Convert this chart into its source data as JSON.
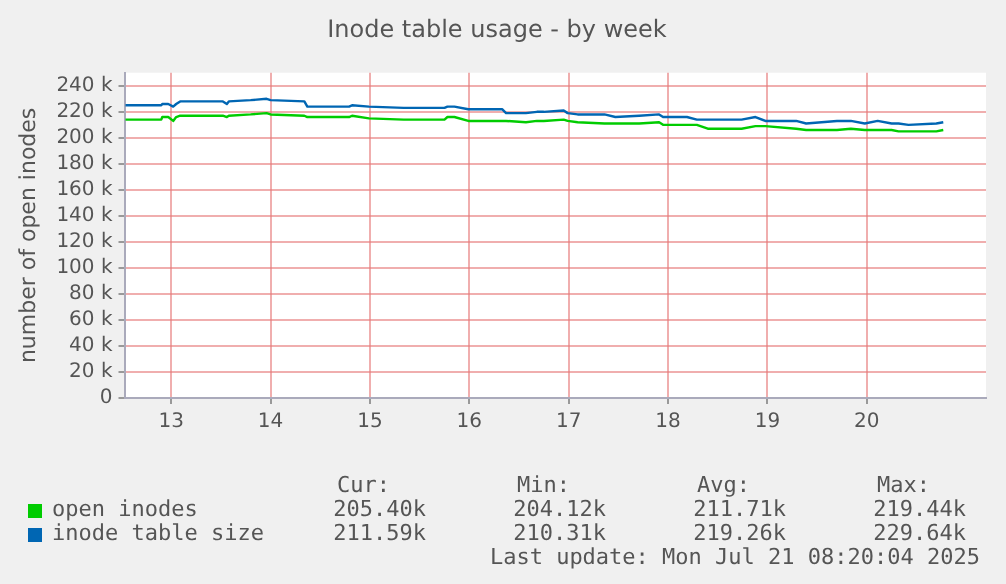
{
  "chart_data": {
    "type": "line",
    "title": "Inode table usage - by week",
    "ylabel": "number of open inodes",
    "xlim": [
      12.53,
      21.2
    ],
    "xticks": [
      13,
      14,
      15,
      16,
      17,
      18,
      19,
      20
    ],
    "ylim": [
      0,
      250000
    ],
    "yticks": [
      0,
      {
        "value": 20000,
        "label": "20 k"
      },
      {
        "value": 40000,
        "label": "40 k"
      },
      {
        "value": 60000,
        "label": "60 k"
      },
      {
        "value": 80000,
        "label": "80 k"
      },
      {
        "value": 100000,
        "label": "100 k"
      },
      {
        "value": 120000,
        "label": "120 k"
      },
      {
        "value": 140000,
        "label": "140 k"
      },
      {
        "value": 160000,
        "label": "160 k"
      },
      {
        "value": 180000,
        "label": "180 k"
      },
      {
        "value": 200000,
        "label": "200 k"
      },
      {
        "value": 220000,
        "label": "220 k"
      },
      {
        "value": 240000,
        "label": "240 k"
      }
    ],
    "x": [
      12.54,
      12.9,
      12.91,
      12.97,
      13.02,
      13.05,
      13.09,
      13.52,
      13.56,
      13.58,
      13.8,
      13.96,
      14.0,
      14.34,
      14.37,
      14.79,
      14.82,
      14.99,
      15.34,
      15.75,
      15.78,
      15.85,
      15.99,
      16.33,
      16.37,
      16.57,
      16.68,
      16.75,
      16.95,
      16.99,
      17.09,
      17.36,
      17.47,
      17.71,
      17.91,
      17.95,
      18.19,
      18.29,
      18.4,
      18.74,
      18.88,
      18.98,
      19.29,
      19.39,
      19.7,
      19.84,
      19.98,
      20.11,
      20.25,
      20.32,
      20.42,
      20.7,
      20.77
    ],
    "series": [
      {
        "name": "open inodes",
        "color": "#00cc00",
        "values": [
          214000,
          214000,
          216000,
          216000,
          213000,
          216000,
          217000,
          217000,
          216000,
          217000,
          218000,
          219000,
          218000,
          217000,
          216000,
          216000,
          217000,
          215000,
          214000,
          214000,
          216000,
          216000,
          213000,
          213000,
          213000,
          212000,
          213000,
          213000,
          214000,
          213000,
          212000,
          211000,
          211000,
          211000,
          212000,
          210000,
          210000,
          210000,
          207000,
          207000,
          209000,
          209000,
          207000,
          206000,
          206000,
          207000,
          206000,
          206000,
          206000,
          205000,
          205000,
          205000,
          206000
        ]
      },
      {
        "name": "inode table size",
        "color": "#0066b3",
        "values": [
          225000,
          225000,
          226000,
          226000,
          224000,
          226000,
          228000,
          228000,
          226000,
          228000,
          229000,
          230000,
          229000,
          228000,
          224000,
          224000,
          225000,
          224000,
          223000,
          223000,
          224000,
          224000,
          222000,
          222000,
          219000,
          219000,
          220000,
          220000,
          221000,
          219000,
          218000,
          218000,
          216000,
          217000,
          218000,
          216000,
          216000,
          214000,
          214000,
          214000,
          216000,
          213000,
          213000,
          211000,
          213000,
          213000,
          211000,
          213000,
          211000,
          211000,
          210000,
          211000,
          212000
        ]
      }
    ],
    "grid": true,
    "legend": "bottom",
    "marker": "none",
    "line_style": "solid",
    "annotations": [
      "Cur:",
      "Min:",
      "Avg:",
      "Max:",
      "205.40k",
      "204.12k",
      "211.71k",
      "219.44k",
      "211.59k",
      "210.31k",
      "219.26k",
      "229.64k",
      "Last update: Mon Jul 21 08:20:04 2025"
    ]
  }
}
